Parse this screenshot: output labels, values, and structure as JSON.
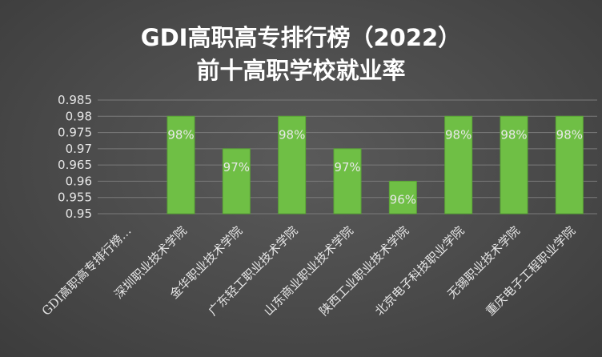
{
  "chart_data": {
    "type": "bar",
    "title_lines": [
      "GDI高职高专排行榜（2022）",
      "前十高职学校就业率"
    ],
    "categories": [
      "GDI高职高专排行榜…",
      "深圳职业技术学院",
      "金华职业技术学院",
      "广东轻工职业技术学院",
      "山东商业职业技术学院",
      "陕西工业职业技术学院",
      "北京电子科技职业学院",
      "无锡职业技术学院",
      "重庆电子工程职业学院"
    ],
    "values": [
      null,
      0.98,
      0.97,
      0.98,
      0.97,
      0.96,
      0.98,
      0.98,
      0.98
    ],
    "data_labels": [
      "",
      "98%",
      "97%",
      "98%",
      "97%",
      "96%",
      "98%",
      "98%",
      "98%"
    ],
    "ylim": [
      0.95,
      0.985
    ],
    "yticks": [
      "0.95",
      "0.955",
      "0.96",
      "0.965",
      "0.97",
      "0.975",
      "0.98",
      "0.985"
    ],
    "grid": true,
    "colors": {
      "bar": "#6fbf45",
      "bar_edge": "#5aa536",
      "grid": "#7a7a7a",
      "text": "#e6e6e6",
      "title": "#ffffff"
    }
  }
}
